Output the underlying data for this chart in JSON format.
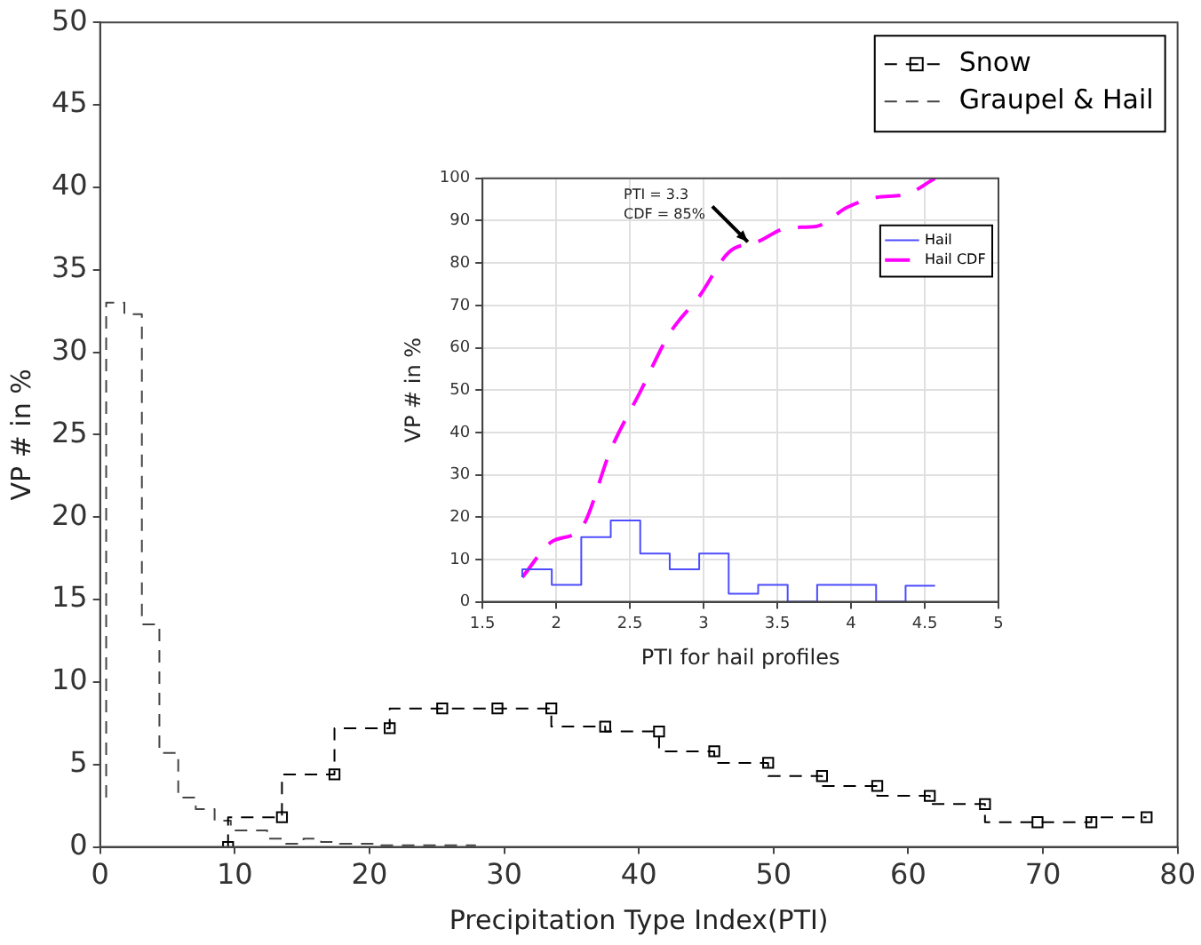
{
  "chart_data": [
    {
      "type": "step",
      "xlabel": "Precipitation Type Index(PTI)",
      "ylabel": "VP # in %",
      "xlim": [
        0,
        80
      ],
      "ylim": [
        0,
        50
      ],
      "xticks": [
        0,
        10,
        20,
        30,
        40,
        50,
        60,
        70,
        80
      ],
      "yticks": [
        0,
        5,
        10,
        15,
        20,
        25,
        30,
        35,
        40,
        45,
        50
      ],
      "grid": false,
      "legend": "top right",
      "series": [
        {
          "name": "Snow",
          "color": "#000000",
          "type": "step",
          "marker": "square",
          "line_style": "dashed",
          "x": [
            9.5,
            13.5,
            17.4,
            21.5,
            25.4,
            29.5,
            33.5,
            37.5,
            41.5,
            45.6,
            49.6,
            53.6,
            57.7,
            61.6,
            65.7,
            69.6,
            73.6,
            77.7
          ],
          "values": [
            0,
            1.8,
            4.4,
            7.2,
            8.4,
            8.4,
            8.4,
            7.3,
            7.0,
            5.8,
            5.1,
            4.3,
            3.7,
            3.1,
            2.6,
            1.5,
            1.5,
            1.8
          ]
        },
        {
          "name": "Graupel & Hail",
          "color": "#444444",
          "type": "step",
          "marker": "none",
          "line_style": "dashed",
          "x": [
            0.45,
            1.8,
            3.1,
            4.4,
            5.8,
            7.1,
            8.5,
            9.7,
            11.0,
            12.4,
            13.8,
            15.1,
            16.4,
            17.8,
            19.1,
            20.5,
            21.8,
            23.2,
            24.5,
            25.8,
            27.9
          ],
          "values": [
            3.0,
            33.0,
            32.3,
            13.5,
            5.7,
            3.0,
            2.3,
            1.6,
            1.0,
            1.0,
            0.5,
            0.2,
            0.5,
            0.3,
            0.2,
            0.2,
            0.1,
            0.1,
            0.1,
            0.1,
            0.1
          ]
        }
      ]
    },
    {
      "type": "step",
      "xlabel": "PTI for hail profiles",
      "ylabel": "VP # in %",
      "xlim": [
        1.5,
        5
      ],
      "ylim": [
        0,
        100
      ],
      "xticks": [
        1.5,
        2,
        2.5,
        3,
        3.5,
        4,
        4.5,
        5
      ],
      "yticks": [
        0,
        10,
        20,
        30,
        40,
        50,
        60,
        70,
        80,
        90,
        100
      ],
      "grid": true,
      "legend": "top right",
      "annotations": [
        {
          "text": "PTI = 3.3\nCDF = 85%",
          "x": 3.3,
          "y": 85
        }
      ],
      "series": [
        {
          "name": "Hail",
          "color": "#4d4dff",
          "type": "step",
          "line_style": "solid",
          "x": [
            1.77,
            1.97,
            2.17,
            2.37,
            2.57,
            2.77,
            2.97,
            3.17,
            3.37,
            3.57,
            3.77,
            3.97,
            4.17,
            4.37,
            4.57
          ],
          "values": [
            5.8,
            7.7,
            4.0,
            15.3,
            19.2,
            11.4,
            7.7,
            11.4,
            1.9,
            4.0,
            0,
            4.0,
            4.0,
            0,
            3.8
          ]
        },
        {
          "name": "Hail CDF",
          "color": "#ff00ff",
          "type": "line",
          "line_style": "dashed",
          "x": [
            1.77,
            1.97,
            2.17,
            2.37,
            2.57,
            2.77,
            2.97,
            3.17,
            3.37,
            3.57,
            3.77,
            3.97,
            4.17,
            4.37,
            4.57
          ],
          "values": [
            5.8,
            14.2,
            17.4,
            35.9,
            49.6,
            63.4,
            72.1,
            82.5,
            85.1,
            88.3,
            88.7,
            93.1,
            95.5,
            96.2,
            100
          ]
        }
      ]
    }
  ]
}
